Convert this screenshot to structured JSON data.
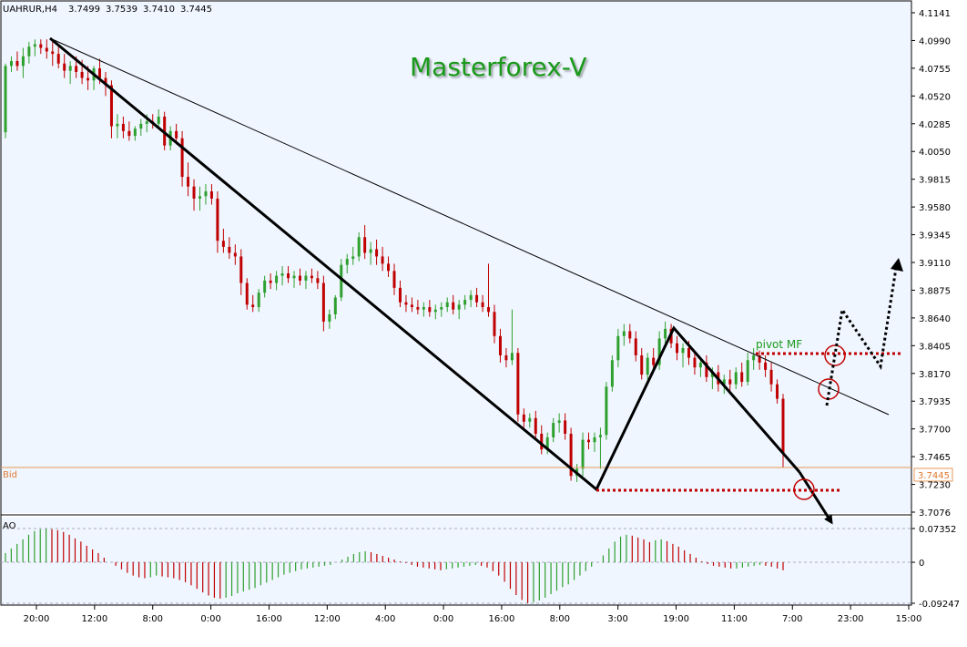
{
  "header": {
    "symbol": "UAHRUR,H4",
    "open": "3.7499",
    "high": "3.7539",
    "low": "3.7410",
    "close": "3.7445"
  },
  "watermark": "Masterforex-V",
  "annotations": {
    "pivot_label": "pivot MF",
    "bid_label": "Bid",
    "bid_value": "3.7445"
  },
  "indicator": {
    "name": "AO",
    "tick_labels": [
      "0.07352",
      "0",
      "-0.09247"
    ]
  },
  "colors": {
    "background": "#f0f6ff",
    "bull": "#2ea02e",
    "bear": "#c00000",
    "bid_line": "#e69a5a",
    "pivot_dotted": "#c00000",
    "watermark": "#1a9a1a"
  },
  "chart_data": {
    "type": "candlestick",
    "y_tick_labels": [
      "4.1141",
      "4.0990",
      "4.0755",
      "4.0520",
      "4.0285",
      "4.0050",
      "3.9815",
      "3.9580",
      "3.9345",
      "3.9110",
      "3.8875",
      "3.8640",
      "3.8405",
      "3.8170",
      "3.7935",
      "3.7700",
      "3.7465",
      "3.7230",
      "3.7076"
    ],
    "x_tick_labels": [
      "20:00",
      "12:00",
      "8:00",
      "0:00",
      "16:00",
      "12:00",
      "4:00",
      "0:00",
      "16:00",
      "8:00",
      "3:00",
      "19:00",
      "11:00",
      "7:00",
      "23:00",
      "15:00"
    ],
    "ylim": [
      3.7076,
      4.1141
    ],
    "last_price": 3.7445,
    "candles": [
      [
        4.015,
        4.072,
        4.01,
        4.07
      ],
      [
        4.07,
        4.078,
        4.065,
        4.074
      ],
      [
        4.074,
        4.082,
        4.066,
        4.07
      ],
      [
        4.07,
        4.085,
        4.06,
        4.078
      ],
      [
        4.078,
        4.09,
        4.072,
        4.086
      ],
      [
        4.086,
        4.092,
        4.078,
        4.088
      ],
      [
        4.088,
        4.092,
        4.08,
        4.085
      ],
      [
        4.085,
        4.092,
        4.076,
        4.082
      ],
      [
        4.082,
        4.09,
        4.07,
        4.08
      ],
      [
        4.08,
        4.088,
        4.068,
        4.072
      ],
      [
        4.072,
        4.08,
        4.06,
        4.066
      ],
      [
        4.066,
        4.074,
        4.055,
        4.07
      ],
      [
        4.07,
        4.078,
        4.06,
        4.065
      ],
      [
        4.065,
        4.075,
        4.055,
        4.06
      ],
      [
        4.06,
        4.07,
        4.05,
        4.058
      ],
      [
        4.058,
        4.07,
        4.05,
        4.068
      ],
      [
        4.068,
        4.076,
        4.055,
        4.06
      ],
      [
        4.06,
        4.065,
        4.045,
        4.054
      ],
      [
        4.054,
        4.058,
        4.01,
        4.02
      ],
      [
        4.02,
        4.03,
        4.01,
        4.022
      ],
      [
        4.022,
        4.028,
        4.01,
        4.016
      ],
      [
        4.016,
        4.024,
        4.008,
        4.012
      ],
      [
        4.012,
        4.02,
        4.008,
        4.018
      ],
      [
        4.018,
        4.026,
        4.012,
        4.022
      ],
      [
        4.022,
        4.03,
        4.015,
        4.024
      ],
      [
        4.024,
        4.03,
        4.018,
        4.022
      ],
      [
        4.022,
        4.034,
        4.018,
        4.028
      ],
      [
        4.028,
        4.032,
        4.0,
        4.004
      ],
      [
        4.004,
        4.02,
        4.0,
        4.016
      ],
      [
        4.016,
        4.022,
        4.005,
        4.01
      ],
      [
        4.01,
        4.016,
        3.97,
        3.978
      ],
      [
        3.978,
        3.99,
        3.962,
        3.97
      ],
      [
        3.97,
        3.976,
        3.95,
        3.96
      ],
      [
        3.96,
        3.97,
        3.95,
        3.962
      ],
      [
        3.962,
        3.972,
        3.955,
        3.966
      ],
      [
        3.966,
        3.972,
        3.955,
        3.96
      ],
      [
        3.96,
        3.966,
        3.915,
        3.925
      ],
      [
        3.925,
        3.935,
        3.915,
        3.92
      ],
      [
        3.92,
        3.928,
        3.91,
        3.915
      ],
      [
        3.915,
        3.922,
        3.905,
        3.912
      ],
      [
        3.912,
        3.918,
        3.88,
        3.89
      ],
      [
        3.89,
        3.894,
        3.868,
        3.872
      ],
      [
        3.872,
        3.88,
        3.866,
        3.87
      ],
      [
        3.87,
        3.885,
        3.866,
        3.882
      ],
      [
        3.882,
        3.896,
        3.878,
        3.892
      ],
      [
        3.892,
        3.898,
        3.885,
        3.89
      ],
      [
        3.89,
        3.9,
        3.884,
        3.896
      ],
      [
        3.896,
        3.904,
        3.888,
        3.898
      ],
      [
        3.898,
        3.904,
        3.89,
        3.894
      ],
      [
        3.894,
        3.9,
        3.886,
        3.896
      ],
      [
        3.896,
        3.902,
        3.888,
        3.892
      ],
      [
        3.892,
        3.9,
        3.885,
        3.896
      ],
      [
        3.896,
        3.902,
        3.89,
        3.894
      ],
      [
        3.894,
        3.9,
        3.885,
        3.89
      ],
      [
        3.89,
        3.896,
        3.85,
        3.858
      ],
      [
        3.858,
        3.868,
        3.852,
        3.864
      ],
      [
        3.864,
        3.88,
        3.86,
        3.878
      ],
      [
        3.878,
        3.91,
        3.875,
        3.905
      ],
      [
        3.905,
        3.914,
        3.898,
        3.91
      ],
      [
        3.91,
        3.92,
        3.905,
        3.912
      ],
      [
        3.912,
        3.932,
        3.908,
        3.928
      ],
      [
        3.928,
        3.938,
        3.91,
        3.915
      ],
      [
        3.915,
        3.924,
        3.905,
        3.918
      ],
      [
        3.918,
        3.926,
        3.905,
        3.912
      ],
      [
        3.912,
        3.92,
        3.9,
        3.906
      ],
      [
        3.906,
        3.912,
        3.895,
        3.9
      ],
      [
        3.9,
        3.906,
        3.88,
        3.886
      ],
      [
        3.886,
        3.892,
        3.87,
        3.874
      ],
      [
        3.874,
        3.88,
        3.866,
        3.872
      ],
      [
        3.872,
        3.878,
        3.866,
        3.87
      ],
      [
        3.87,
        3.876,
        3.864,
        3.868
      ],
      [
        3.868,
        3.874,
        3.862,
        3.87
      ],
      [
        3.87,
        3.876,
        3.862,
        3.866
      ],
      [
        3.866,
        3.872,
        3.86,
        3.868
      ],
      [
        3.868,
        3.874,
        3.862,
        3.87
      ],
      [
        3.87,
        3.878,
        3.866,
        3.874
      ],
      [
        3.874,
        3.88,
        3.864,
        3.868
      ],
      [
        3.868,
        3.876,
        3.86,
        3.872
      ],
      [
        3.872,
        3.88,
        3.868,
        3.876
      ],
      [
        3.876,
        3.884,
        3.87,
        3.88
      ],
      [
        3.88,
        3.886,
        3.87,
        3.874
      ],
      [
        3.874,
        3.88,
        3.866,
        3.87
      ],
      [
        3.87,
        3.906,
        3.862,
        3.866
      ],
      [
        3.866,
        3.872,
        3.84,
        3.846
      ],
      [
        3.846,
        3.852,
        3.824,
        3.83
      ],
      [
        3.83,
        3.836,
        3.82,
        3.826
      ],
      [
        3.826,
        3.868,
        3.822,
        3.832
      ],
      [
        3.832,
        3.836,
        3.775,
        3.781
      ],
      [
        3.781,
        3.786,
        3.77,
        3.775
      ],
      [
        3.775,
        3.782,
        3.77,
        3.778
      ],
      [
        3.778,
        3.784,
        3.76,
        3.765
      ],
      [
        3.765,
        3.772,
        3.748,
        3.752
      ],
      [
        3.752,
        3.766,
        3.748,
        3.762
      ],
      [
        3.762,
        3.778,
        3.758,
        3.774
      ],
      [
        3.774,
        3.782,
        3.766,
        3.776
      ],
      [
        3.776,
        3.782,
        3.76,
        3.765
      ],
      [
        3.765,
        3.77,
        3.726,
        3.73
      ],
      [
        3.73,
        3.74,
        3.725,
        3.736
      ],
      [
        3.736,
        3.766,
        3.73,
        3.76
      ],
      [
        3.76,
        3.766,
        3.752,
        3.758
      ],
      [
        3.758,
        3.766,
        3.75,
        3.762
      ],
      [
        3.762,
        3.77,
        3.736,
        3.764
      ],
      [
        3.764,
        3.808,
        3.76,
        3.804
      ],
      [
        3.804,
        3.83,
        3.8,
        3.826
      ],
      [
        3.826,
        3.852,
        3.82,
        3.846
      ],
      [
        3.846,
        3.856,
        3.838,
        3.85
      ],
      [
        3.85,
        3.856,
        3.84,
        3.844
      ],
      [
        3.844,
        3.85,
        3.825,
        3.83
      ],
      [
        3.83,
        3.836,
        3.81,
        3.814
      ],
      [
        3.814,
        3.832,
        3.81,
        3.828
      ],
      [
        3.828,
        3.836,
        3.818,
        3.822
      ],
      [
        3.822,
        3.85,
        3.818,
        3.844
      ],
      [
        3.844,
        3.858,
        3.838,
        3.852
      ],
      [
        3.852,
        3.856,
        3.836,
        3.84
      ],
      [
        3.84,
        3.846,
        3.826,
        3.832
      ],
      [
        3.832,
        3.84,
        3.82,
        3.836
      ],
      [
        3.836,
        3.842,
        3.822,
        3.828
      ],
      [
        3.828,
        3.834,
        3.814,
        3.82
      ],
      [
        3.82,
        3.828,
        3.812,
        3.824
      ],
      [
        3.824,
        3.83,
        3.808,
        3.812
      ],
      [
        3.812,
        3.82,
        3.802,
        3.816
      ],
      [
        3.816,
        3.822,
        3.8,
        3.806
      ],
      [
        3.806,
        3.814,
        3.798,
        3.81
      ],
      [
        3.81,
        3.818,
        3.8,
        3.806
      ],
      [
        3.806,
        3.82,
        3.802,
        3.816
      ],
      [
        3.816,
        3.824,
        3.804,
        3.808
      ],
      [
        3.808,
        3.832,
        3.805,
        3.826
      ],
      [
        3.826,
        3.836,
        3.818,
        3.83
      ],
      [
        3.83,
        3.834,
        3.818,
        3.824
      ],
      [
        3.824,
        3.83,
        3.812,
        3.818
      ],
      [
        3.818,
        3.824,
        3.8,
        3.806
      ],
      [
        3.806,
        3.81,
        3.79,
        3.794
      ],
      [
        3.794,
        3.798,
        3.737,
        3.749
      ]
    ],
    "ao_values": [
      0.02,
      0.03,
      0.04,
      0.05,
      0.06,
      0.068,
      0.072,
      0.073,
      0.072,
      0.07,
      0.066,
      0.06,
      0.052,
      0.045,
      0.036,
      0.028,
      0.02,
      0.01,
      0.0,
      -0.008,
      -0.016,
      -0.024,
      -0.03,
      -0.034,
      -0.036,
      -0.034,
      -0.03,
      -0.032,
      -0.034,
      -0.036,
      -0.04,
      -0.045,
      -0.052,
      -0.06,
      -0.068,
      -0.075,
      -0.08,
      -0.082,
      -0.08,
      -0.076,
      -0.07,
      -0.066,
      -0.062,
      -0.058,
      -0.052,
      -0.046,
      -0.04,
      -0.034,
      -0.028,
      -0.024,
      -0.02,
      -0.016,
      -0.014,
      -0.012,
      -0.01,
      -0.008,
      -0.006,
      0.0,
      0.006,
      0.012,
      0.018,
      0.022,
      0.024,
      0.022,
      0.018,
      0.014,
      0.01,
      0.006,
      0.002,
      -0.002,
      -0.006,
      -0.01,
      -0.012,
      -0.014,
      -0.016,
      -0.018,
      -0.016,
      -0.014,
      -0.012,
      -0.01,
      -0.008,
      -0.006,
      -0.008,
      -0.012,
      -0.02,
      -0.03,
      -0.044,
      -0.06,
      -0.074,
      -0.085,
      -0.092,
      -0.09,
      -0.086,
      -0.08,
      -0.072,
      -0.064,
      -0.056,
      -0.05,
      -0.04,
      -0.03,
      -0.02,
      -0.01,
      0.0,
      0.015,
      0.03,
      0.045,
      0.056,
      0.06,
      0.058,
      0.054,
      0.05,
      0.044,
      0.048,
      0.05,
      0.046,
      0.04,
      0.034,
      0.026,
      0.018,
      0.01,
      0.002,
      -0.004,
      -0.008,
      -0.01,
      -0.012,
      -0.014,
      -0.014,
      -0.012,
      -0.01,
      -0.008,
      -0.006,
      -0.008,
      -0.01,
      -0.014,
      -0.018
    ]
  }
}
